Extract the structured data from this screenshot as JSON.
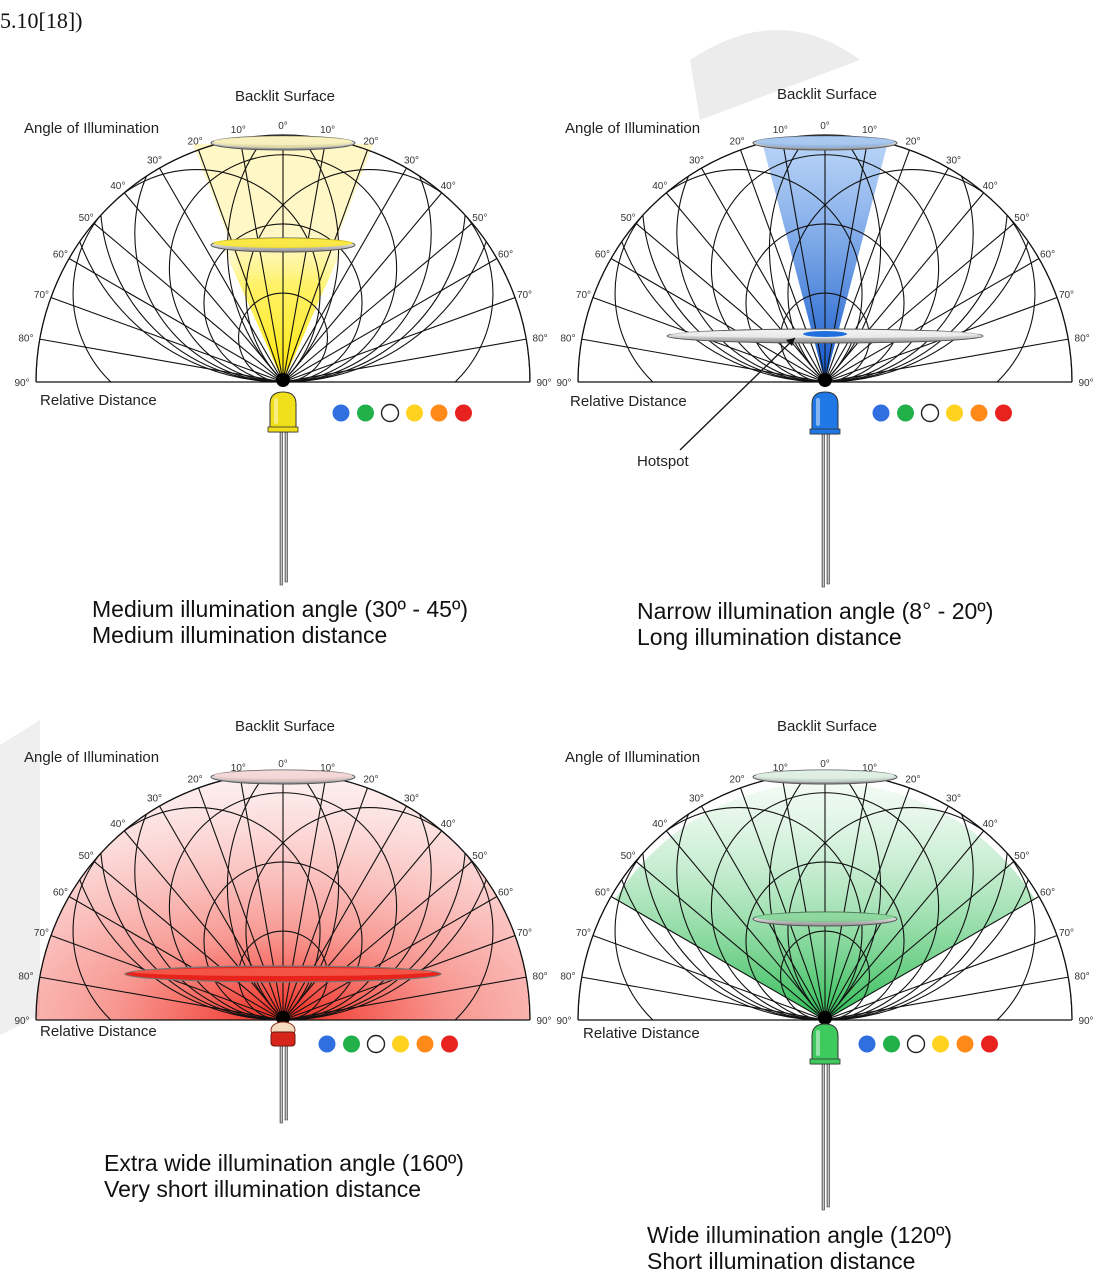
{
  "header_fragment": "5.10[18])",
  "common_labels": {
    "backlit_surface": "Backlit Surface",
    "angle_of_illumination": "Angle of Illumination",
    "relative_distance": "Relative Distance",
    "hotspot": "Hotspot"
  },
  "angle_ticks": [
    "0°",
    "10°",
    "20°",
    "30°",
    "40°",
    "50°",
    "60°",
    "70°",
    "80°",
    "90°"
  ],
  "color_dots": [
    "#2f6fe0",
    "#22b04b",
    "#ffffff",
    "#ffd21f",
    "#ff8a1a",
    "#e8231f"
  ],
  "panels": [
    {
      "id": "yellow",
      "led_color": "#f2df1b",
      "beam_color": "#ffe600",
      "caption_line1": "Medium illumination angle (30º - 45º)",
      "caption_line2": "Medium illumination distance"
    },
    {
      "id": "blue",
      "led_color": "#1f78e6",
      "beam_color": "#1f6fe0",
      "caption_line1": "Narrow illumination angle (8° - 20º)",
      "caption_line2": "Long illumination distance"
    },
    {
      "id": "red",
      "led_color": "#d8251c",
      "beam_color": "#f02010",
      "caption_line1": "Extra wide illumination angle (160º)",
      "caption_line2": "Very short illumination distance"
    },
    {
      "id": "green",
      "led_color": "#3fca5e",
      "beam_color": "#2ec050",
      "caption_line1": "Wide illumination angle (120º)",
      "caption_line2": "Short illumination distance"
    }
  ]
}
